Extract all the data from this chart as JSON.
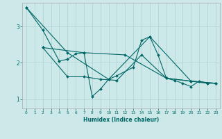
{
  "xlabel": "Humidex (Indice chaleur)",
  "background_color": "#cce8e8",
  "line_color": "#006666",
  "grid_color": "#b0d0d0",
  "xlim": [
    -0.5,
    23.5
  ],
  "ylim": [
    0.75,
    3.65
  ],
  "yticks": [
    1,
    2,
    3
  ],
  "xticks": [
    0,
    1,
    2,
    3,
    4,
    5,
    6,
    7,
    8,
    9,
    10,
    11,
    12,
    13,
    14,
    15,
    16,
    17,
    18,
    19,
    20,
    21,
    22,
    23
  ],
  "line1": [
    [
      0,
      3.52
    ],
    [
      2,
      2.9
    ],
    [
      4,
      2.05
    ],
    [
      5,
      2.1
    ],
    [
      6,
      2.25
    ],
    [
      7,
      2.28
    ],
    [
      8,
      1.08
    ],
    [
      9,
      1.28
    ],
    [
      10,
      1.55
    ],
    [
      11,
      1.65
    ],
    [
      13,
      1.88
    ],
    [
      14,
      2.62
    ],
    [
      15,
      2.72
    ],
    [
      16,
      2.22
    ],
    [
      17,
      1.58
    ],
    [
      18,
      1.52
    ],
    [
      19,
      1.44
    ],
    [
      20,
      1.35
    ],
    [
      21,
      1.5
    ],
    [
      22,
      1.44
    ],
    [
      23,
      1.44
    ]
  ],
  "line2": [
    [
      2,
      2.42
    ],
    [
      5,
      1.62
    ],
    [
      7,
      1.62
    ],
    [
      9,
      1.55
    ],
    [
      11,
      1.52
    ],
    [
      14,
      2.22
    ],
    [
      17,
      1.58
    ],
    [
      20,
      1.5
    ],
    [
      23,
      1.44
    ]
  ],
  "line3": [
    [
      0,
      3.52
    ],
    [
      5,
      2.28
    ],
    [
      10,
      1.55
    ],
    [
      15,
      2.72
    ],
    [
      20,
      1.5
    ],
    [
      23,
      1.44
    ]
  ],
  "line4": [
    [
      2,
      2.42
    ],
    [
      7,
      2.28
    ],
    [
      12,
      2.22
    ],
    [
      17,
      1.58
    ],
    [
      22,
      1.44
    ]
  ]
}
